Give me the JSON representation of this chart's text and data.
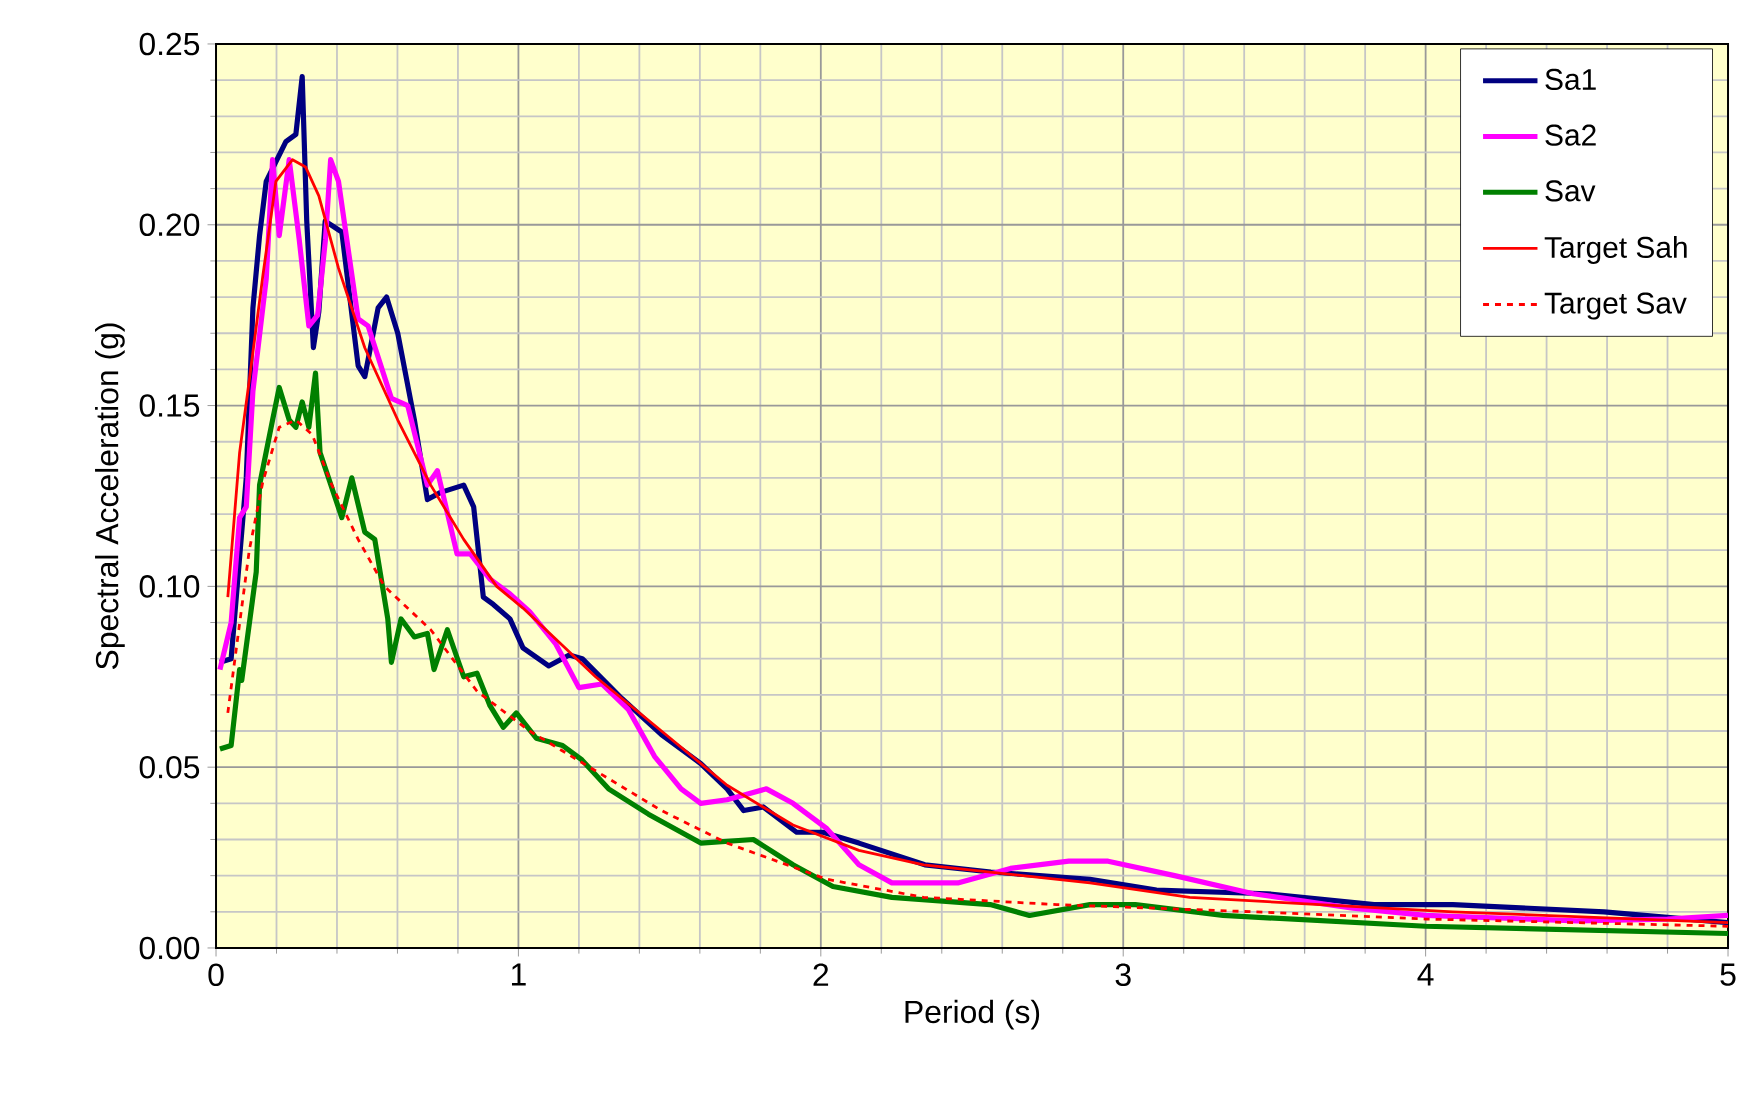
{
  "chart_data": {
    "type": "line",
    "xlabel": "Period (s)",
    "ylabel": "Spectral Acceleration (g)",
    "xlim": [
      0,
      5
    ],
    "xticks": [
      0,
      1,
      2,
      3,
      4,
      5
    ],
    "ylim": [
      0,
      0.25
    ],
    "yticks": [
      {
        "value": 0,
        "label": "0.00"
      },
      {
        "value": 0.05,
        "label": "0.05"
      },
      {
        "value": 0.1,
        "label": "0.10"
      },
      {
        "value": 0.15,
        "label": "0.15"
      },
      {
        "value": 0.2,
        "label": "0.20"
      },
      {
        "value": 0.25,
        "label": "0.25"
      }
    ],
    "grid": true,
    "legend": "top right",
    "marker": "none",
    "series": [
      {
        "name": "Sa1",
        "color": "#000080",
        "line_style": "solid",
        "x": [
          0.013,
          0.05,
          0.1,
          0.122,
          0.144,
          0.166,
          0.231,
          0.264,
          0.285,
          0.3,
          0.322,
          0.34,
          0.361,
          0.416,
          0.47,
          0.492,
          0.536,
          0.564,
          0.601,
          0.656,
          0.699,
          0.743,
          0.819,
          0.852,
          0.884,
          0.917,
          0.972,
          1.015,
          1.1,
          1.168,
          1.211,
          1.342,
          1.473,
          1.603,
          1.69,
          1.745,
          1.81,
          1.92,
          2.007,
          2.126,
          2.344,
          2.562,
          2.89,
          3.11,
          3.476,
          3.83,
          4.09,
          4.59,
          5.0
        ],
        "values": [
          0.079,
          0.08,
          0.13,
          0.177,
          0.197,
          0.212,
          0.223,
          0.225,
          0.241,
          0.201,
          0.166,
          0.176,
          0.201,
          0.198,
          0.161,
          0.158,
          0.177,
          0.18,
          0.17,
          0.146,
          0.124,
          0.126,
          0.128,
          0.122,
          0.097,
          0.095,
          0.091,
          0.083,
          0.078,
          0.081,
          0.08,
          0.069,
          0.059,
          0.051,
          0.044,
          0.038,
          0.039,
          0.032,
          0.032,
          0.029,
          0.023,
          0.021,
          0.019,
          0.016,
          0.015,
          0.012,
          0.012,
          0.01,
          0.007
        ]
      },
      {
        "name": "Sa2",
        "color": "#ff00ff",
        "line_style": "solid",
        "x": [
          0.013,
          0.05,
          0.078,
          0.1,
          0.122,
          0.166,
          0.187,
          0.209,
          0.242,
          0.275,
          0.307,
          0.336,
          0.362,
          0.379,
          0.405,
          0.47,
          0.503,
          0.58,
          0.634,
          0.699,
          0.732,
          0.797,
          0.841,
          0.906,
          0.971,
          1.037,
          1.124,
          1.2,
          1.276,
          1.363,
          1.45,
          1.538,
          1.603,
          1.69,
          1.82,
          1.908,
          2.02,
          2.126,
          2.235,
          2.453,
          2.627,
          2.82,
          2.95,
          3.17,
          3.43,
          3.76,
          4.0,
          4.5,
          4.8,
          5.0
        ],
        "values": [
          0.077,
          0.09,
          0.119,
          0.122,
          0.154,
          0.185,
          0.218,
          0.197,
          0.218,
          0.196,
          0.172,
          0.175,
          0.196,
          0.218,
          0.212,
          0.174,
          0.172,
          0.152,
          0.15,
          0.128,
          0.132,
          0.109,
          0.109,
          0.102,
          0.098,
          0.093,
          0.084,
          0.072,
          0.073,
          0.066,
          0.053,
          0.044,
          0.04,
          0.041,
          0.044,
          0.04,
          0.033,
          0.023,
          0.018,
          0.018,
          0.022,
          0.024,
          0.024,
          0.02,
          0.015,
          0.011,
          0.009,
          0.0075,
          0.008,
          0.009
        ]
      },
      {
        "name": "Sav",
        "color": "#008000",
        "line_style": "solid",
        "x": [
          0.013,
          0.05,
          0.078,
          0.085,
          0.133,
          0.144,
          0.187,
          0.209,
          0.242,
          0.264,
          0.285,
          0.307,
          0.329,
          0.344,
          0.372,
          0.416,
          0.449,
          0.492,
          0.525,
          0.568,
          0.58,
          0.612,
          0.656,
          0.699,
          0.721,
          0.765,
          0.819,
          0.863,
          0.906,
          0.95,
          0.993,
          1.059,
          1.146,
          1.21,
          1.298,
          1.43,
          1.603,
          1.777,
          1.908,
          2.04,
          2.235,
          2.56,
          2.69,
          2.89,
          3.04,
          3.33,
          4.0,
          5.0
        ],
        "values": [
          0.055,
          0.056,
          0.077,
          0.074,
          0.104,
          0.128,
          0.146,
          0.155,
          0.146,
          0.144,
          0.151,
          0.144,
          0.159,
          0.137,
          0.13,
          0.119,
          0.13,
          0.115,
          0.113,
          0.091,
          0.079,
          0.091,
          0.086,
          0.087,
          0.077,
          0.088,
          0.075,
          0.076,
          0.067,
          0.061,
          0.065,
          0.058,
          0.056,
          0.052,
          0.044,
          0.037,
          0.029,
          0.03,
          0.023,
          0.017,
          0.014,
          0.012,
          0.009,
          0.012,
          0.012,
          0.009,
          0.006,
          0.004
        ]
      },
      {
        "name": "Target Sah",
        "color": "#ff0000",
        "line_style": "solid",
        "x": [
          0.039,
          0.078,
          0.11,
          0.155,
          0.198,
          0.253,
          0.296,
          0.34,
          0.405,
          0.492,
          0.601,
          0.71,
          0.819,
          0.928,
          1.015,
          1.255,
          1.473,
          1.69,
          1.908,
          2.126,
          2.34,
          2.56,
          2.89,
          3.22,
          3.65,
          4.09,
          5.0
        ],
        "values": [
          0.097,
          0.137,
          0.157,
          0.186,
          0.212,
          0.218,
          0.216,
          0.208,
          0.188,
          0.166,
          0.146,
          0.128,
          0.113,
          0.1,
          0.094,
          0.075,
          0.06,
          0.045,
          0.034,
          0.027,
          0.023,
          0.021,
          0.018,
          0.014,
          0.012,
          0.01,
          0.007
        ]
      },
      {
        "name": "Target Sav",
        "color": "#ff0000",
        "line_style": "dashed",
        "x": [
          0.039,
          0.11,
          0.155,
          0.209,
          0.264,
          0.318,
          0.383,
          0.47,
          0.557,
          0.71,
          0.863,
          1.037,
          1.255,
          1.473,
          1.69,
          2.02,
          2.34,
          2.56,
          2.78,
          3.43,
          4.0,
          5.0
        ],
        "values": [
          0.065,
          0.11,
          0.129,
          0.144,
          0.146,
          0.142,
          0.128,
          0.113,
          0.1,
          0.088,
          0.071,
          0.06,
          0.049,
          0.038,
          0.029,
          0.019,
          0.014,
          0.013,
          0.012,
          0.01,
          0.008,
          0.006
        ]
      }
    ]
  }
}
